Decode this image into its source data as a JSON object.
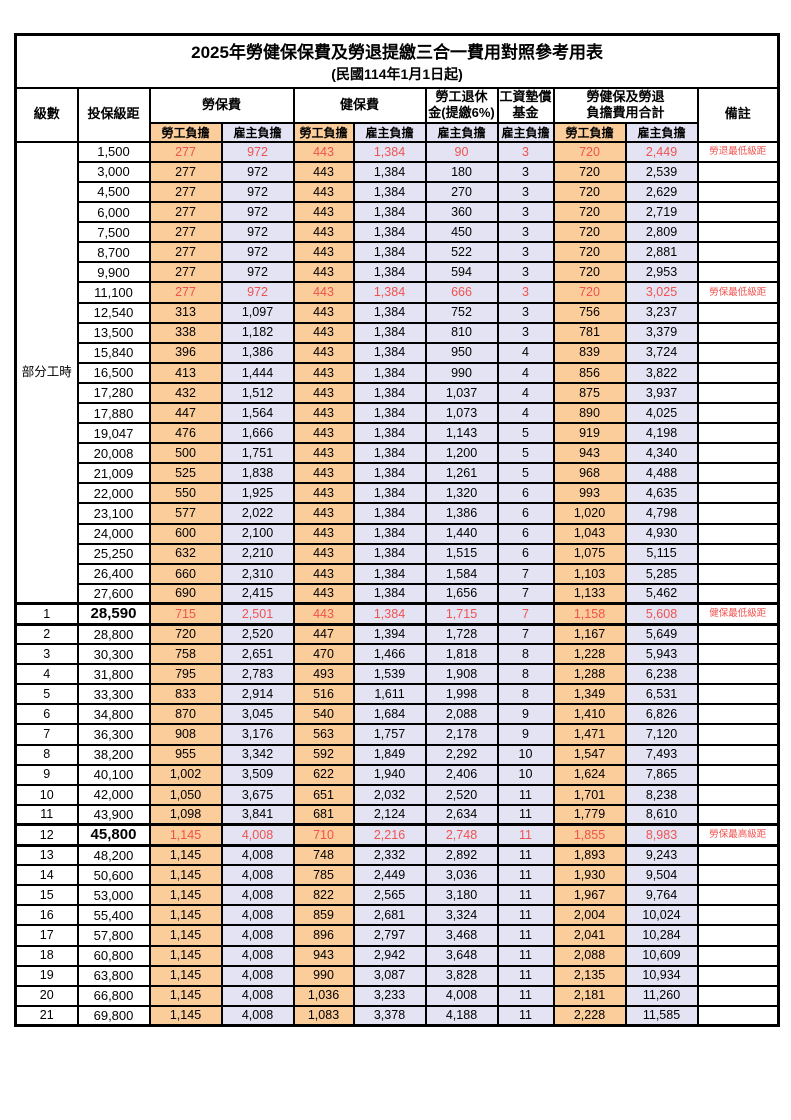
{
  "title": "2025年勞健保保費及勞退提繳三合一費用對照參考用表",
  "subtitle": "(民國114年1月1日起)",
  "colors": {
    "employee_column_bg": "#FACD9B",
    "employer_column_bg": "#E3E3F3",
    "highlight_text": "#F0524F",
    "border": "#000000"
  },
  "header": {
    "level": "級數",
    "bracket": "投保級距",
    "labor_ins": "勞保費",
    "health_ins": "健保費",
    "pension_line1": "勞工退休",
    "pension_line2": "金(提繳6%)",
    "wage_fund_line1": "工資墊償",
    "wage_fund_line2": "基金",
    "total_line1": "勞健保及勞退",
    "total_line2": "負擔費用合計",
    "note": "備註",
    "employee": "勞工負擔",
    "employer": "雇主負擔"
  },
  "table": {
    "part_time_label": "部分工時",
    "columns_order": [
      "勞保費勞工負擔",
      "勞保費雇主負擔",
      "健保費勞工負擔",
      "健保費雇主負擔",
      "勞工退休金雇主負擔",
      "工資墊償基金雇主負擔",
      "合計勞工負擔",
      "合計雇主負擔"
    ],
    "rows": [
      {
        "level": "",
        "bracket": "1,500",
        "v": [
          "277",
          "972",
          "443",
          "1,384",
          "90",
          "3",
          "720",
          "2,449"
        ],
        "note": "勞退最低級距",
        "red": true,
        "bold": false
      },
      {
        "level": "",
        "bracket": "3,000",
        "v": [
          "277",
          "972",
          "443",
          "1,384",
          "180",
          "3",
          "720",
          "2,539"
        ],
        "note": "",
        "red": false,
        "bold": false
      },
      {
        "level": "",
        "bracket": "4,500",
        "v": [
          "277",
          "972",
          "443",
          "1,384",
          "270",
          "3",
          "720",
          "2,629"
        ],
        "note": "",
        "red": false,
        "bold": false
      },
      {
        "level": "",
        "bracket": "6,000",
        "v": [
          "277",
          "972",
          "443",
          "1,384",
          "360",
          "3",
          "720",
          "2,719"
        ],
        "note": "",
        "red": false,
        "bold": false
      },
      {
        "level": "",
        "bracket": "7,500",
        "v": [
          "277",
          "972",
          "443",
          "1,384",
          "450",
          "3",
          "720",
          "2,809"
        ],
        "note": "",
        "red": false,
        "bold": false
      },
      {
        "level": "",
        "bracket": "8,700",
        "v": [
          "277",
          "972",
          "443",
          "1,384",
          "522",
          "3",
          "720",
          "2,881"
        ],
        "note": "",
        "red": false,
        "bold": false
      },
      {
        "level": "",
        "bracket": "9,900",
        "v": [
          "277",
          "972",
          "443",
          "1,384",
          "594",
          "3",
          "720",
          "2,953"
        ],
        "note": "",
        "red": false,
        "bold": false
      },
      {
        "level": "",
        "bracket": "11,100",
        "v": [
          "277",
          "972",
          "443",
          "1,384",
          "666",
          "3",
          "720",
          "3,025"
        ],
        "note": "勞保最低級距",
        "red": true,
        "bold": false
      },
      {
        "level": "",
        "bracket": "12,540",
        "v": [
          "313",
          "1,097",
          "443",
          "1,384",
          "752",
          "3",
          "756",
          "3,237"
        ],
        "note": "",
        "red": false,
        "bold": false
      },
      {
        "level": "",
        "bracket": "13,500",
        "v": [
          "338",
          "1,182",
          "443",
          "1,384",
          "810",
          "3",
          "781",
          "3,379"
        ],
        "note": "",
        "red": false,
        "bold": false
      },
      {
        "level": "",
        "bracket": "15,840",
        "v": [
          "396",
          "1,386",
          "443",
          "1,384",
          "950",
          "4",
          "839",
          "3,724"
        ],
        "note": "",
        "red": false,
        "bold": false
      },
      {
        "level": "",
        "bracket": "16,500",
        "v": [
          "413",
          "1,444",
          "443",
          "1,384",
          "990",
          "4",
          "856",
          "3,822"
        ],
        "note": "",
        "red": false,
        "bold": false
      },
      {
        "level": "",
        "bracket": "17,280",
        "v": [
          "432",
          "1,512",
          "443",
          "1,384",
          "1,037",
          "4",
          "875",
          "3,937"
        ],
        "note": "",
        "red": false,
        "bold": false
      },
      {
        "level": "",
        "bracket": "17,880",
        "v": [
          "447",
          "1,564",
          "443",
          "1,384",
          "1,073",
          "4",
          "890",
          "4,025"
        ],
        "note": "",
        "red": false,
        "bold": false
      },
      {
        "level": "",
        "bracket": "19,047",
        "v": [
          "476",
          "1,666",
          "443",
          "1,384",
          "1,143",
          "5",
          "919",
          "4,198"
        ],
        "note": "",
        "red": false,
        "bold": false
      },
      {
        "level": "",
        "bracket": "20,008",
        "v": [
          "500",
          "1,751",
          "443",
          "1,384",
          "1,200",
          "5",
          "943",
          "4,340"
        ],
        "note": "",
        "red": false,
        "bold": false
      },
      {
        "level": "",
        "bracket": "21,009",
        "v": [
          "525",
          "1,838",
          "443",
          "1,384",
          "1,261",
          "5",
          "968",
          "4,488"
        ],
        "note": "",
        "red": false,
        "bold": false
      },
      {
        "level": "",
        "bracket": "22,000",
        "v": [
          "550",
          "1,925",
          "443",
          "1,384",
          "1,320",
          "6",
          "993",
          "4,635"
        ],
        "note": "",
        "red": false,
        "bold": false
      },
      {
        "level": "",
        "bracket": "23,100",
        "v": [
          "577",
          "2,022",
          "443",
          "1,384",
          "1,386",
          "6",
          "1,020",
          "4,798"
        ],
        "note": "",
        "red": false,
        "bold": false
      },
      {
        "level": "",
        "bracket": "24,000",
        "v": [
          "600",
          "2,100",
          "443",
          "1,384",
          "1,440",
          "6",
          "1,043",
          "4,930"
        ],
        "note": "",
        "red": false,
        "bold": false
      },
      {
        "level": "",
        "bracket": "25,250",
        "v": [
          "632",
          "2,210",
          "443",
          "1,384",
          "1,515",
          "6",
          "1,075",
          "5,115"
        ],
        "note": "",
        "red": false,
        "bold": false
      },
      {
        "level": "",
        "bracket": "26,400",
        "v": [
          "660",
          "2,310",
          "443",
          "1,384",
          "1,584",
          "7",
          "1,103",
          "5,285"
        ],
        "note": "",
        "red": false,
        "bold": false
      },
      {
        "level": "",
        "bracket": "27,600",
        "v": [
          "690",
          "2,415",
          "443",
          "1,384",
          "1,656",
          "7",
          "1,133",
          "5,462"
        ],
        "note": "",
        "red": false,
        "bold": false
      },
      {
        "level": "1",
        "bracket": "28,590",
        "v": [
          "715",
          "2,501",
          "443",
          "1,384",
          "1,715",
          "7",
          "1,158",
          "5,608"
        ],
        "note": "健保最低級距",
        "red": true,
        "bold": true
      },
      {
        "level": "2",
        "bracket": "28,800",
        "v": [
          "720",
          "2,520",
          "447",
          "1,394",
          "1,728",
          "7",
          "1,167",
          "5,649"
        ],
        "note": "",
        "red": false,
        "bold": false
      },
      {
        "level": "3",
        "bracket": "30,300",
        "v": [
          "758",
          "2,651",
          "470",
          "1,466",
          "1,818",
          "8",
          "1,228",
          "5,943"
        ],
        "note": "",
        "red": false,
        "bold": false
      },
      {
        "level": "4",
        "bracket": "31,800",
        "v": [
          "795",
          "2,783",
          "493",
          "1,539",
          "1,908",
          "8",
          "1,288",
          "6,238"
        ],
        "note": "",
        "red": false,
        "bold": false
      },
      {
        "level": "5",
        "bracket": "33,300",
        "v": [
          "833",
          "2,914",
          "516",
          "1,611",
          "1,998",
          "8",
          "1,349",
          "6,531"
        ],
        "note": "",
        "red": false,
        "bold": false
      },
      {
        "level": "6",
        "bracket": "34,800",
        "v": [
          "870",
          "3,045",
          "540",
          "1,684",
          "2,088",
          "9",
          "1,410",
          "6,826"
        ],
        "note": "",
        "red": false,
        "bold": false
      },
      {
        "level": "7",
        "bracket": "36,300",
        "v": [
          "908",
          "3,176",
          "563",
          "1,757",
          "2,178",
          "9",
          "1,471",
          "7,120"
        ],
        "note": "",
        "red": false,
        "bold": false
      },
      {
        "level": "8",
        "bracket": "38,200",
        "v": [
          "955",
          "3,342",
          "592",
          "1,849",
          "2,292",
          "10",
          "1,547",
          "7,493"
        ],
        "note": "",
        "red": false,
        "bold": false
      },
      {
        "level": "9",
        "bracket": "40,100",
        "v": [
          "1,002",
          "3,509",
          "622",
          "1,940",
          "2,406",
          "10",
          "1,624",
          "7,865"
        ],
        "note": "",
        "red": false,
        "bold": false
      },
      {
        "level": "10",
        "bracket": "42,000",
        "v": [
          "1,050",
          "3,675",
          "651",
          "2,032",
          "2,520",
          "11",
          "1,701",
          "8,238"
        ],
        "note": "",
        "red": false,
        "bold": false
      },
      {
        "level": "11",
        "bracket": "43,900",
        "v": [
          "1,098",
          "3,841",
          "681",
          "2,124",
          "2,634",
          "11",
          "1,779",
          "8,610"
        ],
        "note": "",
        "red": false,
        "bold": false
      },
      {
        "level": "12",
        "bracket": "45,800",
        "v": [
          "1,145",
          "4,008",
          "710",
          "2,216",
          "2,748",
          "11",
          "1,855",
          "8,983"
        ],
        "note": "勞保最高級距",
        "red": true,
        "bold": true
      },
      {
        "level": "13",
        "bracket": "48,200",
        "v": [
          "1,145",
          "4,008",
          "748",
          "2,332",
          "2,892",
          "11",
          "1,893",
          "9,243"
        ],
        "note": "",
        "red": false,
        "bold": false
      },
      {
        "level": "14",
        "bracket": "50,600",
        "v": [
          "1,145",
          "4,008",
          "785",
          "2,449",
          "3,036",
          "11",
          "1,930",
          "9,504"
        ],
        "note": "",
        "red": false,
        "bold": false
      },
      {
        "level": "15",
        "bracket": "53,000",
        "v": [
          "1,145",
          "4,008",
          "822",
          "2,565",
          "3,180",
          "11",
          "1,967",
          "9,764"
        ],
        "note": "",
        "red": false,
        "bold": false
      },
      {
        "level": "16",
        "bracket": "55,400",
        "v": [
          "1,145",
          "4,008",
          "859",
          "2,681",
          "3,324",
          "11",
          "2,004",
          "10,024"
        ],
        "note": "",
        "red": false,
        "bold": false
      },
      {
        "level": "17",
        "bracket": "57,800",
        "v": [
          "1,145",
          "4,008",
          "896",
          "2,797",
          "3,468",
          "11",
          "2,041",
          "10,284"
        ],
        "note": "",
        "red": false,
        "bold": false
      },
      {
        "level": "18",
        "bracket": "60,800",
        "v": [
          "1,145",
          "4,008",
          "943",
          "2,942",
          "3,648",
          "11",
          "2,088",
          "10,609"
        ],
        "note": "",
        "red": false,
        "bold": false
      },
      {
        "level": "19",
        "bracket": "63,800",
        "v": [
          "1,145",
          "4,008",
          "990",
          "3,087",
          "3,828",
          "11",
          "2,135",
          "10,934"
        ],
        "note": "",
        "red": false,
        "bold": false
      },
      {
        "level": "20",
        "bracket": "66,800",
        "v": [
          "1,145",
          "4,008",
          "1,036",
          "3,233",
          "4,008",
          "11",
          "2,181",
          "11,260"
        ],
        "note": "",
        "red": false,
        "bold": false
      },
      {
        "level": "21",
        "bracket": "69,800",
        "v": [
          "1,145",
          "4,008",
          "1,083",
          "3,378",
          "4,188",
          "11",
          "2,228",
          "11,585"
        ],
        "note": "",
        "red": false,
        "bold": false
      }
    ]
  }
}
